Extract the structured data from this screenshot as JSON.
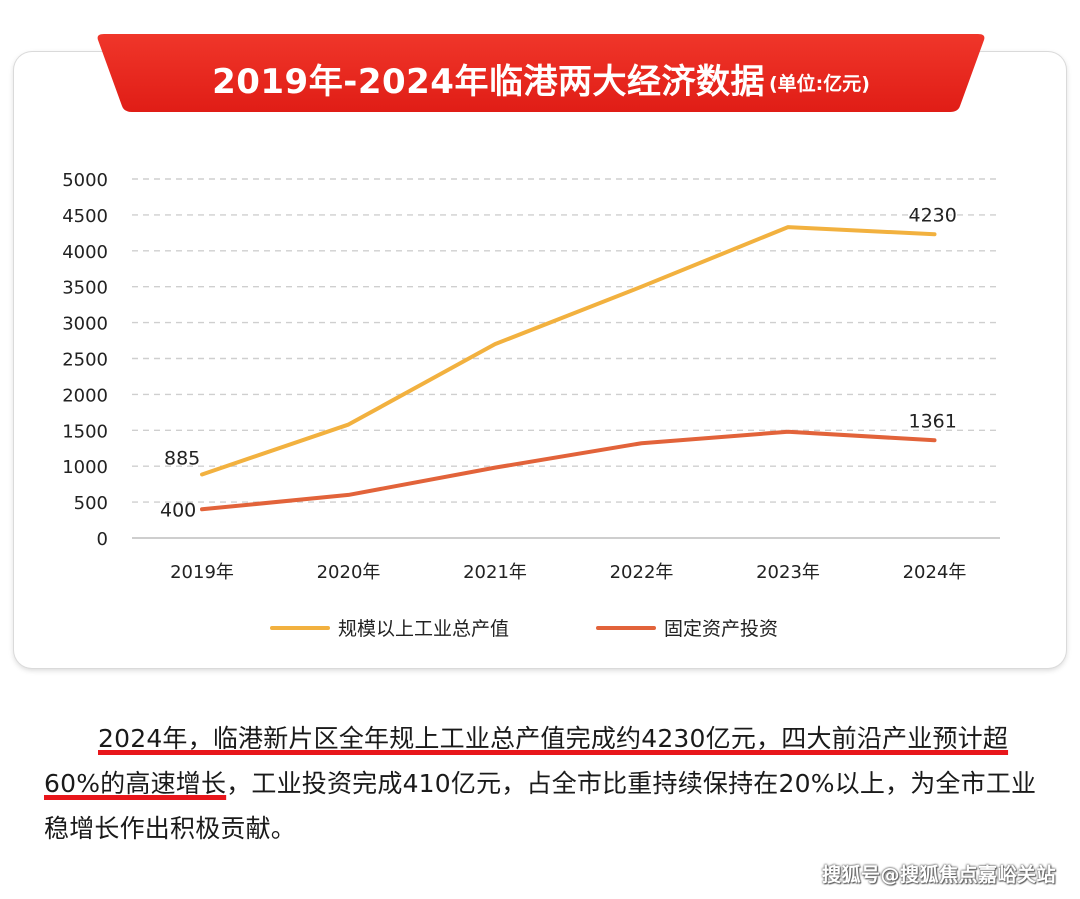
{
  "header": {
    "title": "2019年-2024年临港两大经济数据",
    "unit": "(单位:亿元)"
  },
  "colors": {
    "banner_red": "#e8281f",
    "series_yellow": "#f2b13f",
    "series_orange": "#e2633a",
    "underline_red": "#e8161b"
  },
  "chart_data": {
    "type": "line",
    "categories": [
      "2019年",
      "2020年",
      "2021年",
      "2022年",
      "2023年",
      "2024年"
    ],
    "ylim": [
      0,
      5000
    ],
    "yticks": [
      "0",
      "500",
      "1000",
      "1500",
      "2000",
      "2500",
      "3000",
      "3500",
      "4000",
      "4500",
      "5000"
    ],
    "grid": true,
    "legend_position": "bottom",
    "series": [
      {
        "name": "规模以上工业总产值",
        "values": [
          885,
          1580,
          2700,
          3500,
          4330,
          4230
        ],
        "point_labels": [
          "885",
          "",
          "",
          "",
          "",
          "4230"
        ]
      },
      {
        "name": "固定资产投资",
        "values": [
          400,
          600,
          980,
          1320,
          1480,
          1361
        ],
        "point_labels": [
          "400",
          "",
          "",
          "",
          "",
          "1361"
        ]
      }
    ]
  },
  "article": {
    "hl1": "2024年，临港新片区全年规上工业总产值完成约4230亿元，四大前沿产业预计超60%的高速增长",
    "rest": "，工业投资完成410亿元，占全市比重持续保持在20%以上，为全市工业稳增长作出积极贡献。"
  },
  "watermark": "搜狐号@搜狐焦点嘉峪关站"
}
